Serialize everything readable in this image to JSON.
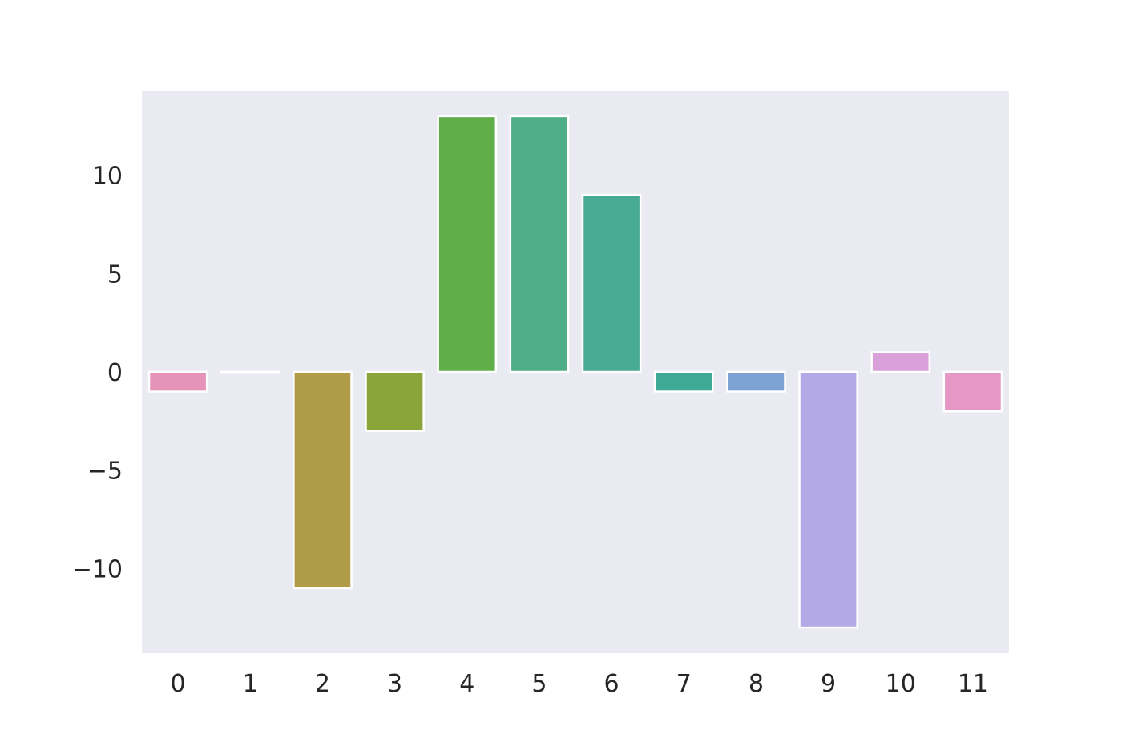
{
  "chart_data": {
    "type": "bar",
    "title": "",
    "xlabel": "",
    "ylabel": "",
    "categories": [
      "0",
      "1",
      "2",
      "3",
      "4",
      "5",
      "6",
      "7",
      "8",
      "9",
      "10",
      "11"
    ],
    "values": [
      -1,
      0,
      -11,
      -3,
      13,
      13,
      9,
      -1,
      -1,
      -13,
      1,
      -2
    ],
    "colors": [
      "#e593b9",
      "#e8a0c8",
      "#b09b48",
      "#8aa63b",
      "#5fae47",
      "#4fae88",
      "#48aa92",
      "#3eaa96",
      "#7fa2d4",
      "#b3a9e7",
      "#d9a0d9",
      "#e697c5"
    ],
    "ylim": [
      -14.3,
      14.3
    ],
    "yticks": [
      10,
      5,
      0,
      -5,
      -10
    ],
    "ytick_labels": [
      "10",
      "5",
      "0",
      "−5",
      "−10"
    ],
    "grid": false,
    "background": "#eaeaf2",
    "bar_edge_color": "#ffffff"
  }
}
